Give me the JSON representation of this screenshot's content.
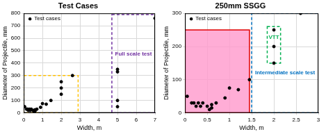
{
  "chart_data": [
    {
      "type": "scatter",
      "title": "Test Cases",
      "x_label": "Width, m",
      "y_label": "Diameter of Projectile, mm",
      "xlim": [
        0,
        7
      ],
      "ylim": [
        0,
        800
      ],
      "xticks": [
        0,
        1,
        2,
        3,
        4,
        5,
        6,
        7
      ],
      "yticks": [
        0,
        100,
        200,
        300,
        400,
        500,
        600,
        700,
        800
      ],
      "grid": true,
      "legend": "upper left",
      "series": [
        {
          "name": "Test cases",
          "color": "#000000",
          "marker": "circle",
          "x": [
            0.05,
            0.15,
            0.2,
            0.25,
            0.3,
            0.35,
            0.4,
            0.5,
            0.55,
            0.6,
            0.6,
            0.7,
            0.9,
            1.0,
            1.2,
            1.45,
            2.0,
            2.0,
            2.0,
            2.6,
            5.0,
            5.0,
            5.0,
            5.0,
            7.0
          ],
          "values": [
            50,
            30,
            30,
            20,
            30,
            20,
            30,
            20,
            10,
            15,
            25,
            30,
            45,
            75,
            70,
            100,
            250,
            200,
            150,
            300,
            350,
            330,
            100,
            50,
            760
          ]
        }
      ],
      "regions": [
        {
          "xlim": [
            0,
            2.9
          ],
          "ylim": [
            0,
            300
          ],
          "color": "#ffc000",
          "line_style": "dashed"
        },
        {
          "label": "Full scale test",
          "xlim": [
            4.7,
            7
          ],
          "ylim": [
            0,
            790
          ],
          "color": "#7030a0",
          "line_style": "dashed"
        }
      ]
    },
    {
      "type": "scatter",
      "title": "250mm SSGG",
      "x_label": "Width, m",
      "y_label": "Diameter of Projectile, mm",
      "xlim": [
        0,
        3
      ],
      "ylim": [
        0,
        300
      ],
      "xticks": [
        0,
        0.5,
        1,
        1.5,
        2,
        2.5,
        3
      ],
      "yticks": [
        0,
        100,
        200,
        300
      ],
      "grid": true,
      "legend": "upper left",
      "series": [
        {
          "name": "Test cases",
          "color": "#000000",
          "marker": "circle",
          "x": [
            0.05,
            0.15,
            0.2,
            0.25,
            0.3,
            0.35,
            0.4,
            0.5,
            0.55,
            0.6,
            0.6,
            0.7,
            0.9,
            1.0,
            1.2,
            1.45,
            2.0,
            2.0,
            2.0,
            2.6
          ],
          "values": [
            50,
            30,
            30,
            20,
            30,
            20,
            30,
            20,
            10,
            15,
            25,
            30,
            45,
            75,
            70,
            100,
            250,
            200,
            150,
            300
          ]
        }
      ],
      "regions": [
        {
          "xlim": [
            0,
            1.45
          ],
          "ylim": [
            0,
            250
          ],
          "color": "#ff99cc",
          "line_style": "solid"
        },
        {
          "label": "Intermediate scale test",
          "xlim": [
            1.5,
            3
          ],
          "ylim": [
            0,
            300
          ],
          "color": "#0070c0",
          "line_style": "dashed"
        },
        {
          "label": "VTT",
          "xlim": [
            1.85,
            2.15
          ],
          "ylim": [
            150,
            260
          ],
          "color": "#00b050",
          "line_style": "dashed"
        }
      ]
    }
  ]
}
